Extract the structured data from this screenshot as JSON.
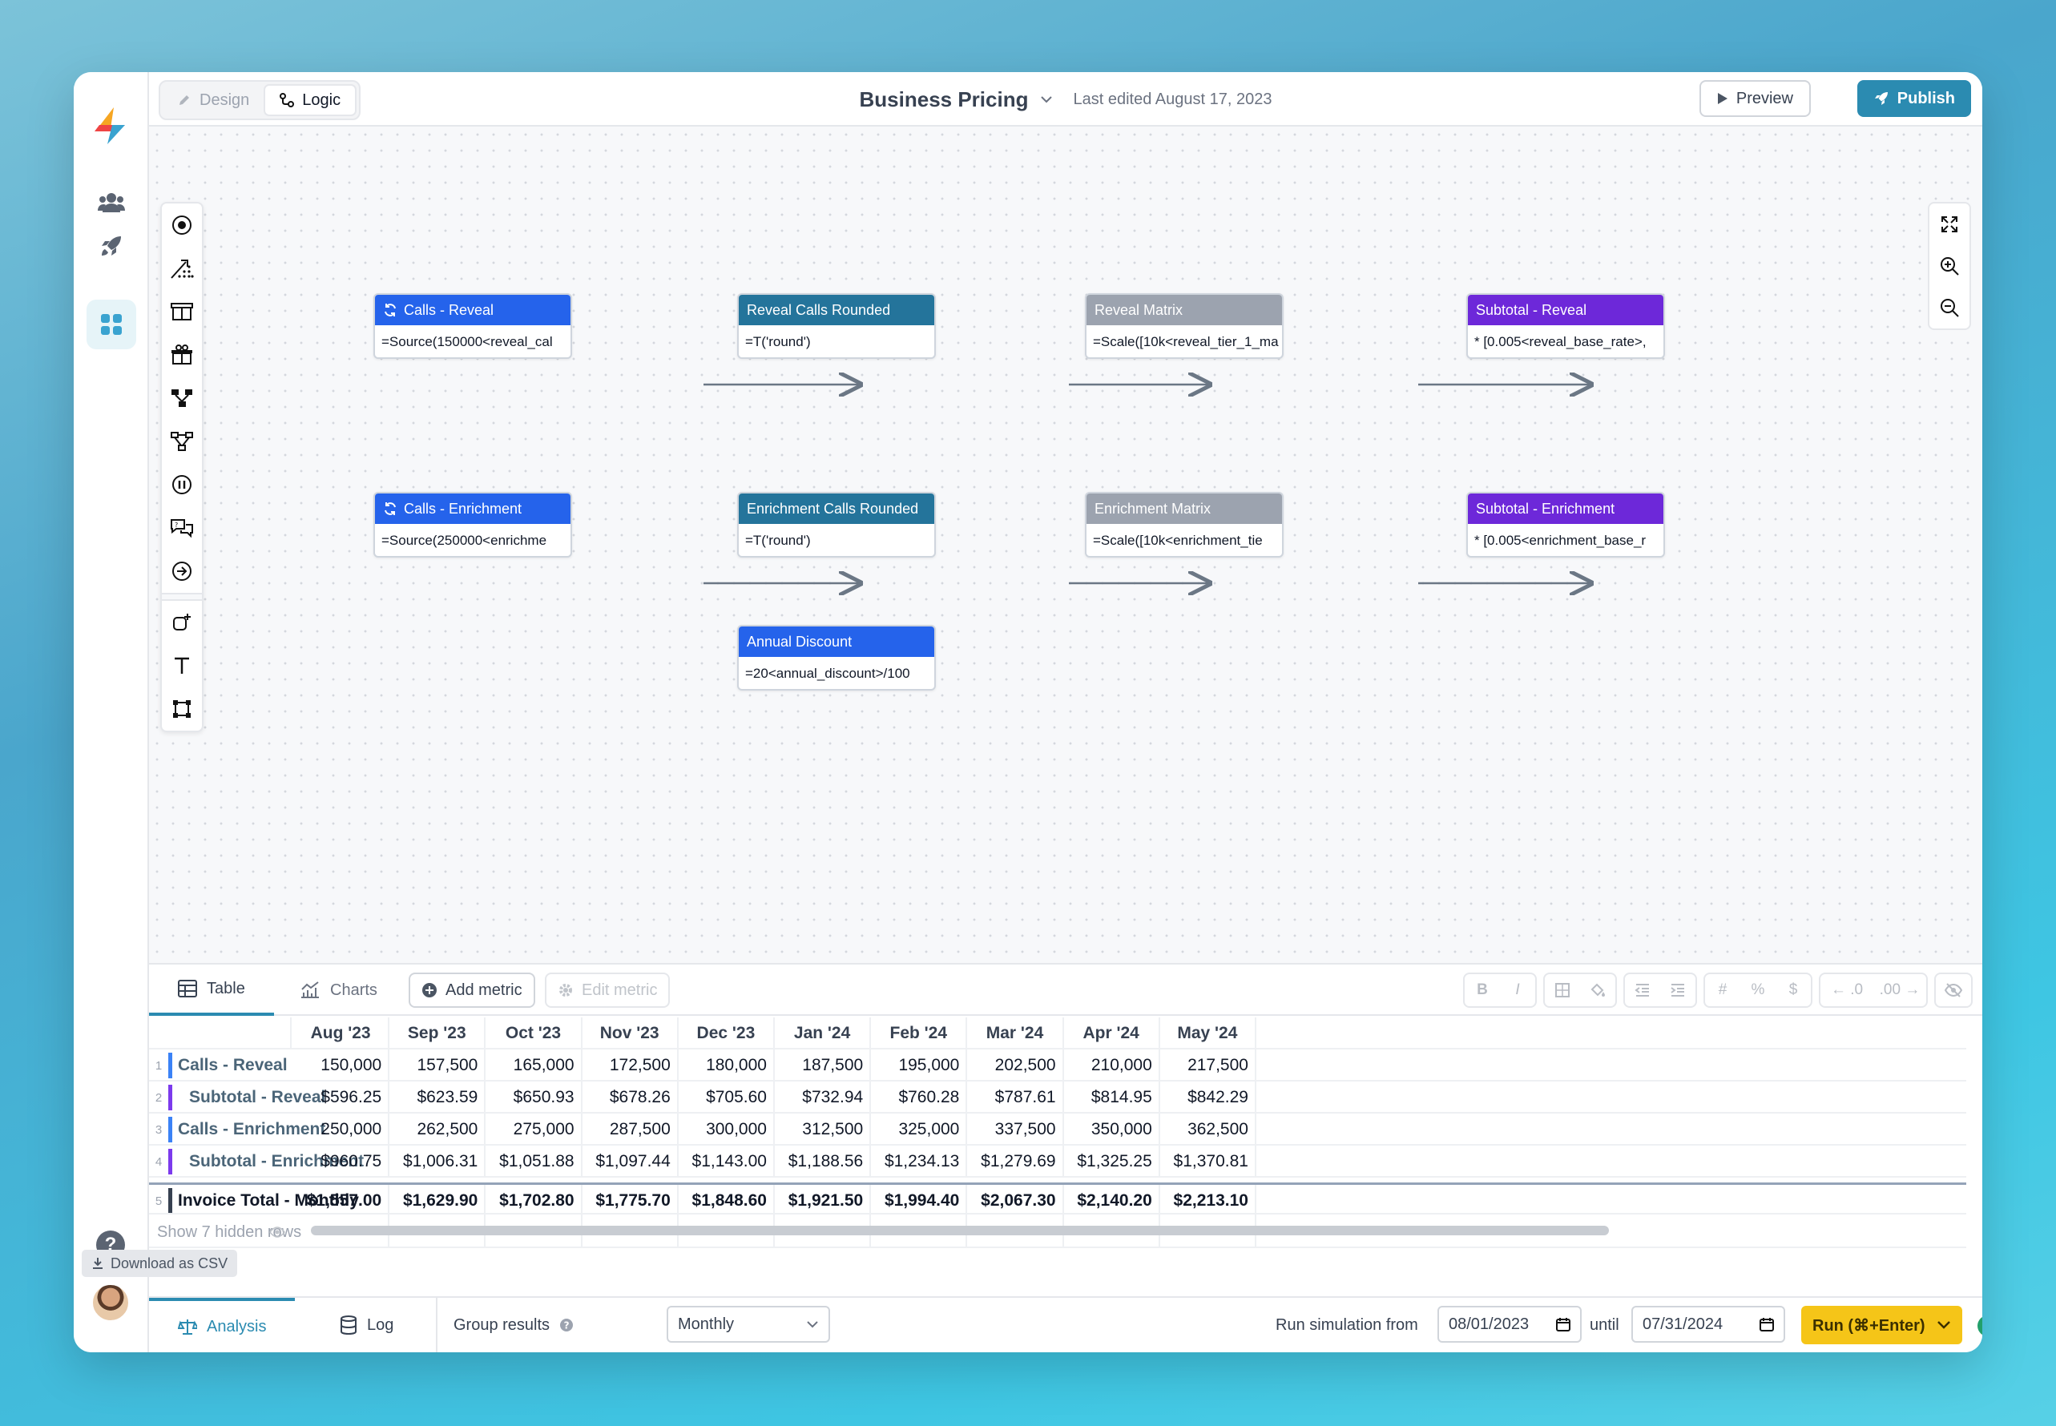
{
  "topbar": {
    "design_label": "Design",
    "logic_label": "Logic",
    "title": "Business Pricing",
    "last_edited": "Last edited August 17, 2023",
    "preview_label": "Preview",
    "publish_label": "Publish"
  },
  "nodes": [
    {
      "title": "Calls - Reveal",
      "formula": "=Source(150000<reveal_cal",
      "color": "#2563eb",
      "sync_icon": true
    },
    {
      "title": "Reveal Calls Rounded",
      "formula": "=T('round')",
      "color": "#24749b",
      "sync_icon": false
    },
    {
      "title": "Reveal Matrix",
      "formula": "=Scale([10k<reveal_tier_1_ma",
      "color": "#9ca3af",
      "sync_icon": false
    },
    {
      "title": "Subtotal - Reveal",
      "formula": "* [0.005<reveal_base_rate>,",
      "color": "#6d28d9",
      "sync_icon": false
    },
    {
      "title": "Calls - Enrichment",
      "formula": "=Source(250000<enrichme",
      "color": "#2563eb",
      "sync_icon": true
    },
    {
      "title": "Enrichment Calls Rounded",
      "formula": "=T('round')",
      "color": "#24749b",
      "sync_icon": false
    },
    {
      "title": "Enrichment Matrix",
      "formula": "=Scale([10k<enrichment_tie",
      "color": "#9ca3af",
      "sync_icon": false
    },
    {
      "title": "Subtotal - Enrichment",
      "formula": "* [0.005<enrichment_base_r",
      "color": "#6d28d9",
      "sync_icon": false
    },
    {
      "title": "Annual Discount",
      "formula": "=20<annual_discount>/100",
      "color": "#2563eb",
      "sync_icon": false
    }
  ],
  "panel": {
    "tab_table": "Table",
    "tab_charts": "Charts",
    "add_metric": "Add metric",
    "edit_metric": "Edit metric",
    "fmt": {
      "bold": "B",
      "italic": "I",
      "hash": "#",
      "percent": "%",
      "dollar": "$",
      "dec_less": "← .0",
      "dec_more": ".00 →"
    }
  },
  "table": {
    "columns": [
      "Aug '23",
      "Sep '23",
      "Oct '23",
      "Nov '23",
      "Dec '23",
      "Jan '24",
      "Feb '24",
      "Mar '24",
      "Apr '24",
      "May '24"
    ],
    "rows": [
      {
        "num": "1",
        "label": "Calls - Reveal",
        "color": "#3b82f6",
        "indent": false,
        "values": [
          "150,000",
          "157,500",
          "165,000",
          "172,500",
          "180,000",
          "187,500",
          "195,000",
          "202,500",
          "210,000",
          "217,500"
        ]
      },
      {
        "num": "2",
        "label": "Subtotal - Reveal",
        "color": "#7c3aed",
        "indent": true,
        "values": [
          "$596.25",
          "$623.59",
          "$650.93",
          "$678.26",
          "$705.60",
          "$732.94",
          "$760.28",
          "$787.61",
          "$814.95",
          "$842.29"
        ]
      },
      {
        "num": "3",
        "label": "Calls - Enrichment",
        "color": "#3b82f6",
        "indent": false,
        "values": [
          "250,000",
          "262,500",
          "275,000",
          "287,500",
          "300,000",
          "312,500",
          "325,000",
          "337,500",
          "350,000",
          "362,500"
        ]
      },
      {
        "num": "4",
        "label": "Subtotal - Enrichment",
        "color": "#7c3aed",
        "indent": true,
        "values": [
          "$960.75",
          "$1,006.31",
          "$1,051.88",
          "$1,097.44",
          "$1,143.00",
          "$1,188.56",
          "$1,234.13",
          "$1,279.69",
          "$1,325.25",
          "$1,370.81"
        ]
      }
    ],
    "total_row": {
      "num": "5",
      "label": "Invoice Total - Monthly",
      "values": [
        "$1,557.00",
        "$1,629.90",
        "$1,702.80",
        "$1,775.70",
        "$1,848.60",
        "$1,921.50",
        "$1,994.40",
        "$2,067.30",
        "$2,140.20",
        "$2,213.10"
      ]
    },
    "hidden_rows_label": "Show 7 hidden rows"
  },
  "download_csv": "Download as CSV",
  "statusbar": {
    "analysis": "Analysis",
    "log": "Log",
    "group_results": "Group results",
    "group_value": "Monthly",
    "run_from": "Run simulation from",
    "from_date": "08/01/2023",
    "until": "until",
    "until_date": "07/31/2024",
    "run_label": "Run (⌘+Enter)"
  },
  "colors": {
    "accent": "#2b8bb1",
    "run": "#f5c518",
    "success": "#22a06b"
  }
}
